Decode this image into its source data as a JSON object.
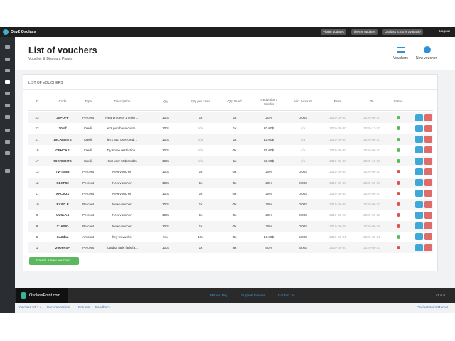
{
  "topbar": {
    "brand": "Dev2 Osclass",
    "plugin_updates": "Plugin updates",
    "theme_updates": "Theme updates",
    "version_notice": "Osclass 3.8.0 is available",
    "logout": "Logout"
  },
  "header": {
    "title": "List of vouchers",
    "subtitle": "Voucher & Discount Plugin",
    "vouchers": "Vouchers",
    "new_voucher": "New voucher"
  },
  "panel": {
    "title": "LIST OF VOUCHERS",
    "create": "Create a new voucher"
  },
  "table": {
    "columns": [
      "ID",
      "Code",
      "Type",
      "Description",
      "Qty",
      "Qty per User",
      "Qty Used",
      "Reduction / Credits",
      "Min. Amount",
      "From",
      "To",
      "Status"
    ],
    "rows": [
      [
        "23",
        "20POFF",
        "Percent",
        "New process 1 order ...",
        "100x",
        "1x",
        "1x",
        "20%",
        "0.00$",
        "2019-08-30",
        "2020-08-30"
      ],
      [
        "22",
        "20off",
        "Credit",
        "let's purchase custo...",
        "100x",
        "n/a",
        "1x",
        "20.00$",
        "n/a",
        "2019-05-30",
        "2020-12-30"
      ],
      [
        "21",
        "15CREDITS",
        "Credit",
        "let's add user credi...",
        "100x",
        "n/a",
        "1x",
        "15.00$",
        "n/a",
        "2019-08-30",
        "2020-08-30"
      ],
      [
        "18",
        "OFHCAS",
        "Credit",
        "Try some restriction...",
        "100x",
        "n/a",
        "0x",
        "25.00$",
        "n/a",
        "2019-08-30",
        "2020-08-30"
      ],
      [
        "17",
        "50CREDITS",
        "Credit",
        "Get user 50$ credits",
        "100x",
        "n/a",
        "1x",
        "50.00$",
        "n/a",
        "2019-08-30",
        "2020-10-30"
      ],
      [
        "13",
        "TWT3BB",
        "Percent",
        "New voucher!",
        "100x",
        "1x",
        "0x",
        "25%",
        "0.00$",
        "2019-08-30",
        "2020-08-30"
      ],
      [
        "12",
        "OLXP02",
        "Percent",
        "New voucher!",
        "100x",
        "1x",
        "0x",
        "25%",
        "0.00$",
        "2019-08-30",
        "2020-08-30"
      ],
      [
        "11",
        "XAC9UX",
        "Percent",
        "New voucher!",
        "100x",
        "1x",
        "0x",
        "25%",
        "0.00$",
        "2019-08-30",
        "2020-08-30"
      ],
      [
        "10",
        "EZX7LF",
        "Percent",
        "New voucher!",
        "100x",
        "1x",
        "0x",
        "25%",
        "0.00$",
        "2019-08-30",
        "2020-08-30"
      ],
      [
        "9",
        "UU1LA4",
        "Percent",
        "New voucher!",
        "100x",
        "1x",
        "0x",
        "25%",
        "0.00$",
        "2019-08-28",
        "2020-08-28"
      ],
      [
        "8",
        "YJASIO",
        "Percent",
        "New voucher!",
        "100x",
        "1x",
        "0x",
        "25%",
        "0.00$",
        "2019-08-28",
        "2020-08-28"
      ],
      [
        "5",
        "XA2dsa",
        "Amount",
        "hey wovucher",
        "51x",
        "12x",
        "0x",
        "10.00$",
        "5.00$",
        "2019-08-31",
        "2020-08-31"
      ],
      [
        "1",
        "20OFFSF",
        "Percent",
        "fdafdsa fads fads fa...",
        "100x",
        "1x",
        "8x",
        "50%",
        "5.00$",
        "2019-08-30",
        "2020-08-30"
      ]
    ],
    "status_colors": [
      "#5cb85c",
      "#5cb85c",
      "#5cb85c",
      "#5cb85c",
      "#5cb85c",
      "#d9534f",
      "#d9534f",
      "#d9534f",
      "#d9534f",
      "#d9534f",
      "#d9534f",
      "#5cb85c",
      "#d9534f"
    ]
  },
  "footer": {
    "logo": "OsclassPoint.com",
    "report": "Report Bug",
    "forums": "Support Forums",
    "contact": "Contact Us",
    "version": "v1.0.0"
  },
  "bottom": {
    "osclass": "Osclass v3.7.4",
    "documentation": "Documentation",
    "forums": "Forums",
    "feedback": "Feedback",
    "market": "OsclassPoint Market"
  }
}
